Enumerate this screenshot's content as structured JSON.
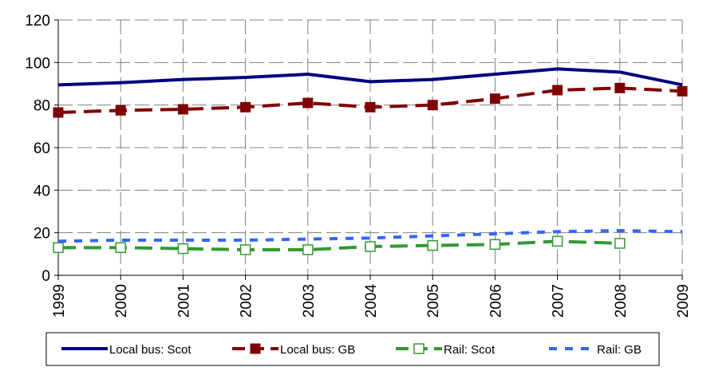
{
  "chart_data": {
    "type": "line",
    "title": "",
    "xlabel": "",
    "ylabel": "",
    "x": [
      "1999",
      "2000",
      "2001",
      "2002",
      "2003",
      "2004",
      "2005",
      "2006",
      "2007",
      "2008",
      "2009"
    ],
    "ylim": [
      0,
      120
    ],
    "yticks": [
      "0",
      "20",
      "40",
      "60",
      "80",
      "100",
      "120"
    ],
    "grid": "dashed horizontal and vertical",
    "legend_position": "bottom",
    "series": [
      {
        "name": "Local bus: Scot",
        "color": "#000080",
        "style": "solid",
        "marker": "none",
        "values": [
          89.5,
          90.5,
          92,
          93,
          94.5,
          91,
          92,
          94.5,
          97,
          95.5,
          89.5
        ]
      },
      {
        "name": "Local bus: GB",
        "color": "#800000",
        "style": "dashed",
        "marker": "filled-square",
        "values": [
          76.5,
          77.5,
          78,
          79,
          81,
          79,
          80,
          83,
          87,
          88,
          86.5
        ]
      },
      {
        "name": "Rail: Scot",
        "color": "#339933",
        "style": "dashed",
        "marker": "hollow-square",
        "values": [
          13,
          13,
          12.5,
          12,
          12,
          13.5,
          14,
          14.5,
          16,
          15,
          null
        ]
      },
      {
        "name": "Rail: GB",
        "color": "#3366FF",
        "style": "dotted",
        "marker": "none",
        "values": [
          16,
          16.5,
          16.5,
          16.5,
          17,
          17.5,
          18.5,
          19.5,
          20.5,
          21,
          20.5
        ]
      }
    ]
  }
}
